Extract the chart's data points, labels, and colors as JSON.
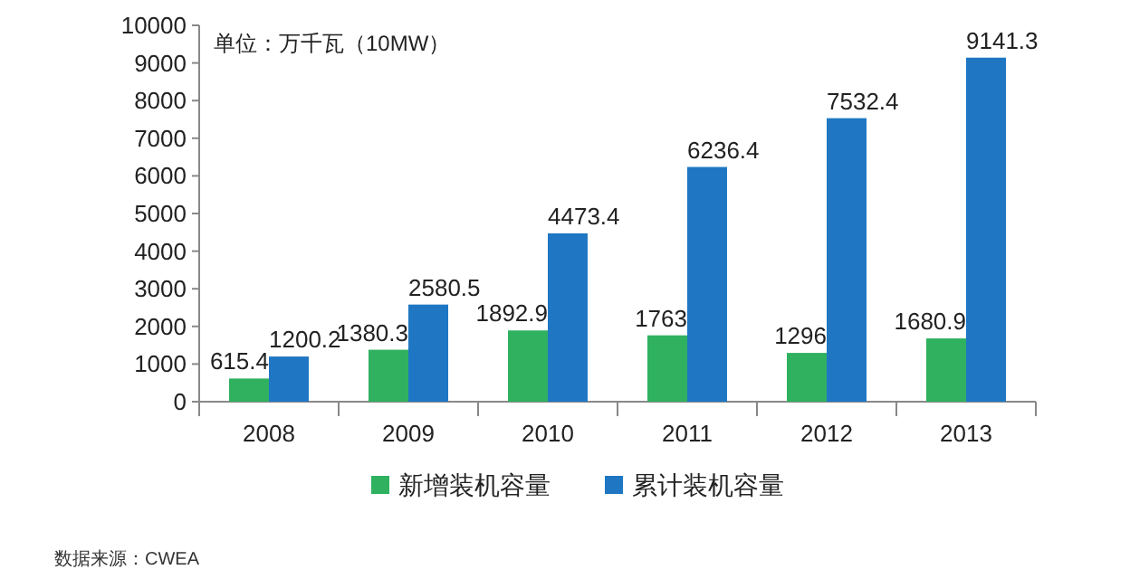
{
  "chart_data": {
    "type": "bar",
    "categories": [
      "2008",
      "2009",
      "2010",
      "2011",
      "2012",
      "2013"
    ],
    "series": [
      {
        "name": "新增装机容量",
        "color": "#2fb15f",
        "values": [
          615.4,
          1380.3,
          1892.9,
          1763,
          1296,
          1680.9
        ]
      },
      {
        "name": "累计装机容量",
        "color": "#1f77c3",
        "values": [
          1200.2,
          2580.5,
          4473.4,
          6236.4,
          7532.4,
          9141.3
        ]
      }
    ],
    "ylim": [
      0,
      10000
    ],
    "yticks": [
      0,
      1000,
      2000,
      3000,
      4000,
      5000,
      6000,
      7000,
      8000,
      9000,
      10000
    ],
    "data_labels": true,
    "legend": "bottom",
    "annotations": [
      "单位：万千瓦（10MW）",
      "数据来源：CWEA"
    ]
  }
}
